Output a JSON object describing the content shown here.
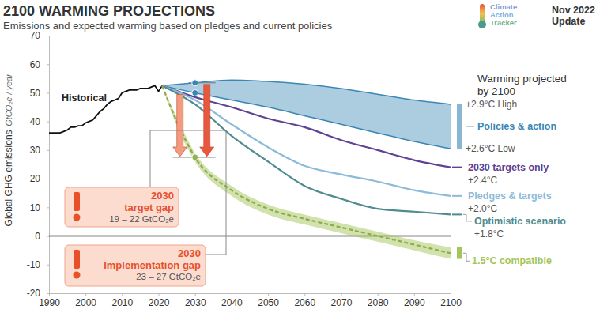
{
  "chart_data": {
    "type": "line",
    "title": "2100 WARMING PROJECTIONS",
    "subtitle": "Emissions and expected warming based on pledges and current policies",
    "source": [
      "Climate",
      "Action",
      "Tracker"
    ],
    "date": [
      "Nov 2022",
      "Update"
    ],
    "ylabel": "Global GHG emissions",
    "ylabel_unit": "GtCO₂e / year",
    "warming_title": [
      "Warming projected",
      "by 2100"
    ],
    "xlim": [
      1990,
      2100
    ],
    "xticks": [
      1990,
      2000,
      2010,
      2020,
      2030,
      2040,
      2050,
      2060,
      2070,
      2080,
      2090,
      2100
    ],
    "ylim": [
      -20,
      70
    ],
    "yticks": [
      -20,
      -10,
      0,
      10,
      20,
      30,
      40,
      50,
      60,
      70
    ],
    "series": [
      {
        "name": "Historical",
        "color": "#111111",
        "line_style": "solid",
        "x": [
          1990,
          1991,
          1992,
          1993,
          1994,
          1995,
          1996,
          1997,
          1998,
          1999,
          2000,
          2001,
          2002,
          2003,
          2004,
          2005,
          2006,
          2007,
          2008,
          2009,
          2010,
          2011,
          2012,
          2013,
          2014,
          2015,
          2016,
          2017,
          2018,
          2019,
          2020,
          2021
        ],
        "values": [
          36,
          36,
          36,
          36,
          36.5,
          37,
          38,
          38,
          38.5,
          38.5,
          39.5,
          40,
          40.5,
          42,
          43.5,
          44.5,
          46,
          47,
          47.5,
          48,
          50,
          50.5,
          51,
          51,
          51,
          51.5,
          51.5,
          51.5,
          52,
          52.5,
          50.5,
          52.5
        ]
      },
      {
        "name": "Policies & action",
        "type": "area",
        "color": "#3a86b6",
        "warming": [
          "+2.9°C High",
          "+2.6°C Low"
        ],
        "x": [
          2021,
          2030,
          2040,
          2050,
          2060,
          2070,
          2080,
          2090,
          2100
        ],
        "values": [
          52.5,
          53.5,
          54.5,
          54,
          53,
          51.5,
          49.5,
          47.5,
          46
        ],
        "low": [
          52.5,
          50,
          47.5,
          45,
          42,
          39,
          36,
          33,
          30.5
        ]
      },
      {
        "name": "2030 targets only",
        "color": "#5e4293",
        "line_style": "solid",
        "warming": "+2.4°C",
        "x": [
          2021,
          2030,
          2040,
          2050,
          2060,
          2070,
          2080,
          2090,
          2100
        ],
        "values": [
          52.5,
          48.5,
          45,
          41,
          38,
          33.5,
          30,
          26.5,
          24
        ]
      },
      {
        "name": "Pledges & targets",
        "color": "#8bbbd9",
        "line_style": "solid",
        "warming": "+2.0°C",
        "x": [
          2021,
          2030,
          2040,
          2050,
          2060,
          2070,
          2080,
          2090,
          2100
        ],
        "values": [
          52.5,
          47.5,
          39,
          31,
          24.5,
          21.5,
          19,
          16,
          14
        ]
      },
      {
        "name": "Optimistic scenario",
        "color": "#4f8c8f",
        "line_style": "solid",
        "warming": "+1.8°C",
        "x": [
          2021,
          2030,
          2040,
          2050,
          2060,
          2070,
          2080,
          2090,
          2100
        ],
        "values": [
          52.5,
          46,
          35,
          26,
          17.5,
          13,
          9.5,
          8.5,
          7.5
        ]
      },
      {
        "name": "1.5°C compatible",
        "color": "#a3c55a",
        "line_style": "dashed",
        "x": [
          2021,
          2025,
          2030,
          2040,
          2050,
          2060,
          2070,
          2080,
          2090,
          2100
        ],
        "values": [
          52.5,
          40,
          27.5,
          16,
          9.5,
          6,
          3,
          0,
          -3,
          -6
        ],
        "low": [
          52.5,
          38.5,
          26,
          14,
          7.5,
          4,
          1,
          -2,
          -5,
          -8
        ],
        "high": [
          52.5,
          41.5,
          29,
          17.5,
          11,
          7.5,
          4.5,
          1.5,
          -1.5,
          -4
        ]
      }
    ],
    "annotations": [
      {
        "lines": [
          "2030",
          "target gap",
          "19 – 22 GtCO₂e"
        ],
        "x": 2030
      },
      {
        "lines": [
          "2030",
          "Implementation gap",
          "23 – 27 GtCO₂e"
        ],
        "x": 2030
      }
    ]
  }
}
